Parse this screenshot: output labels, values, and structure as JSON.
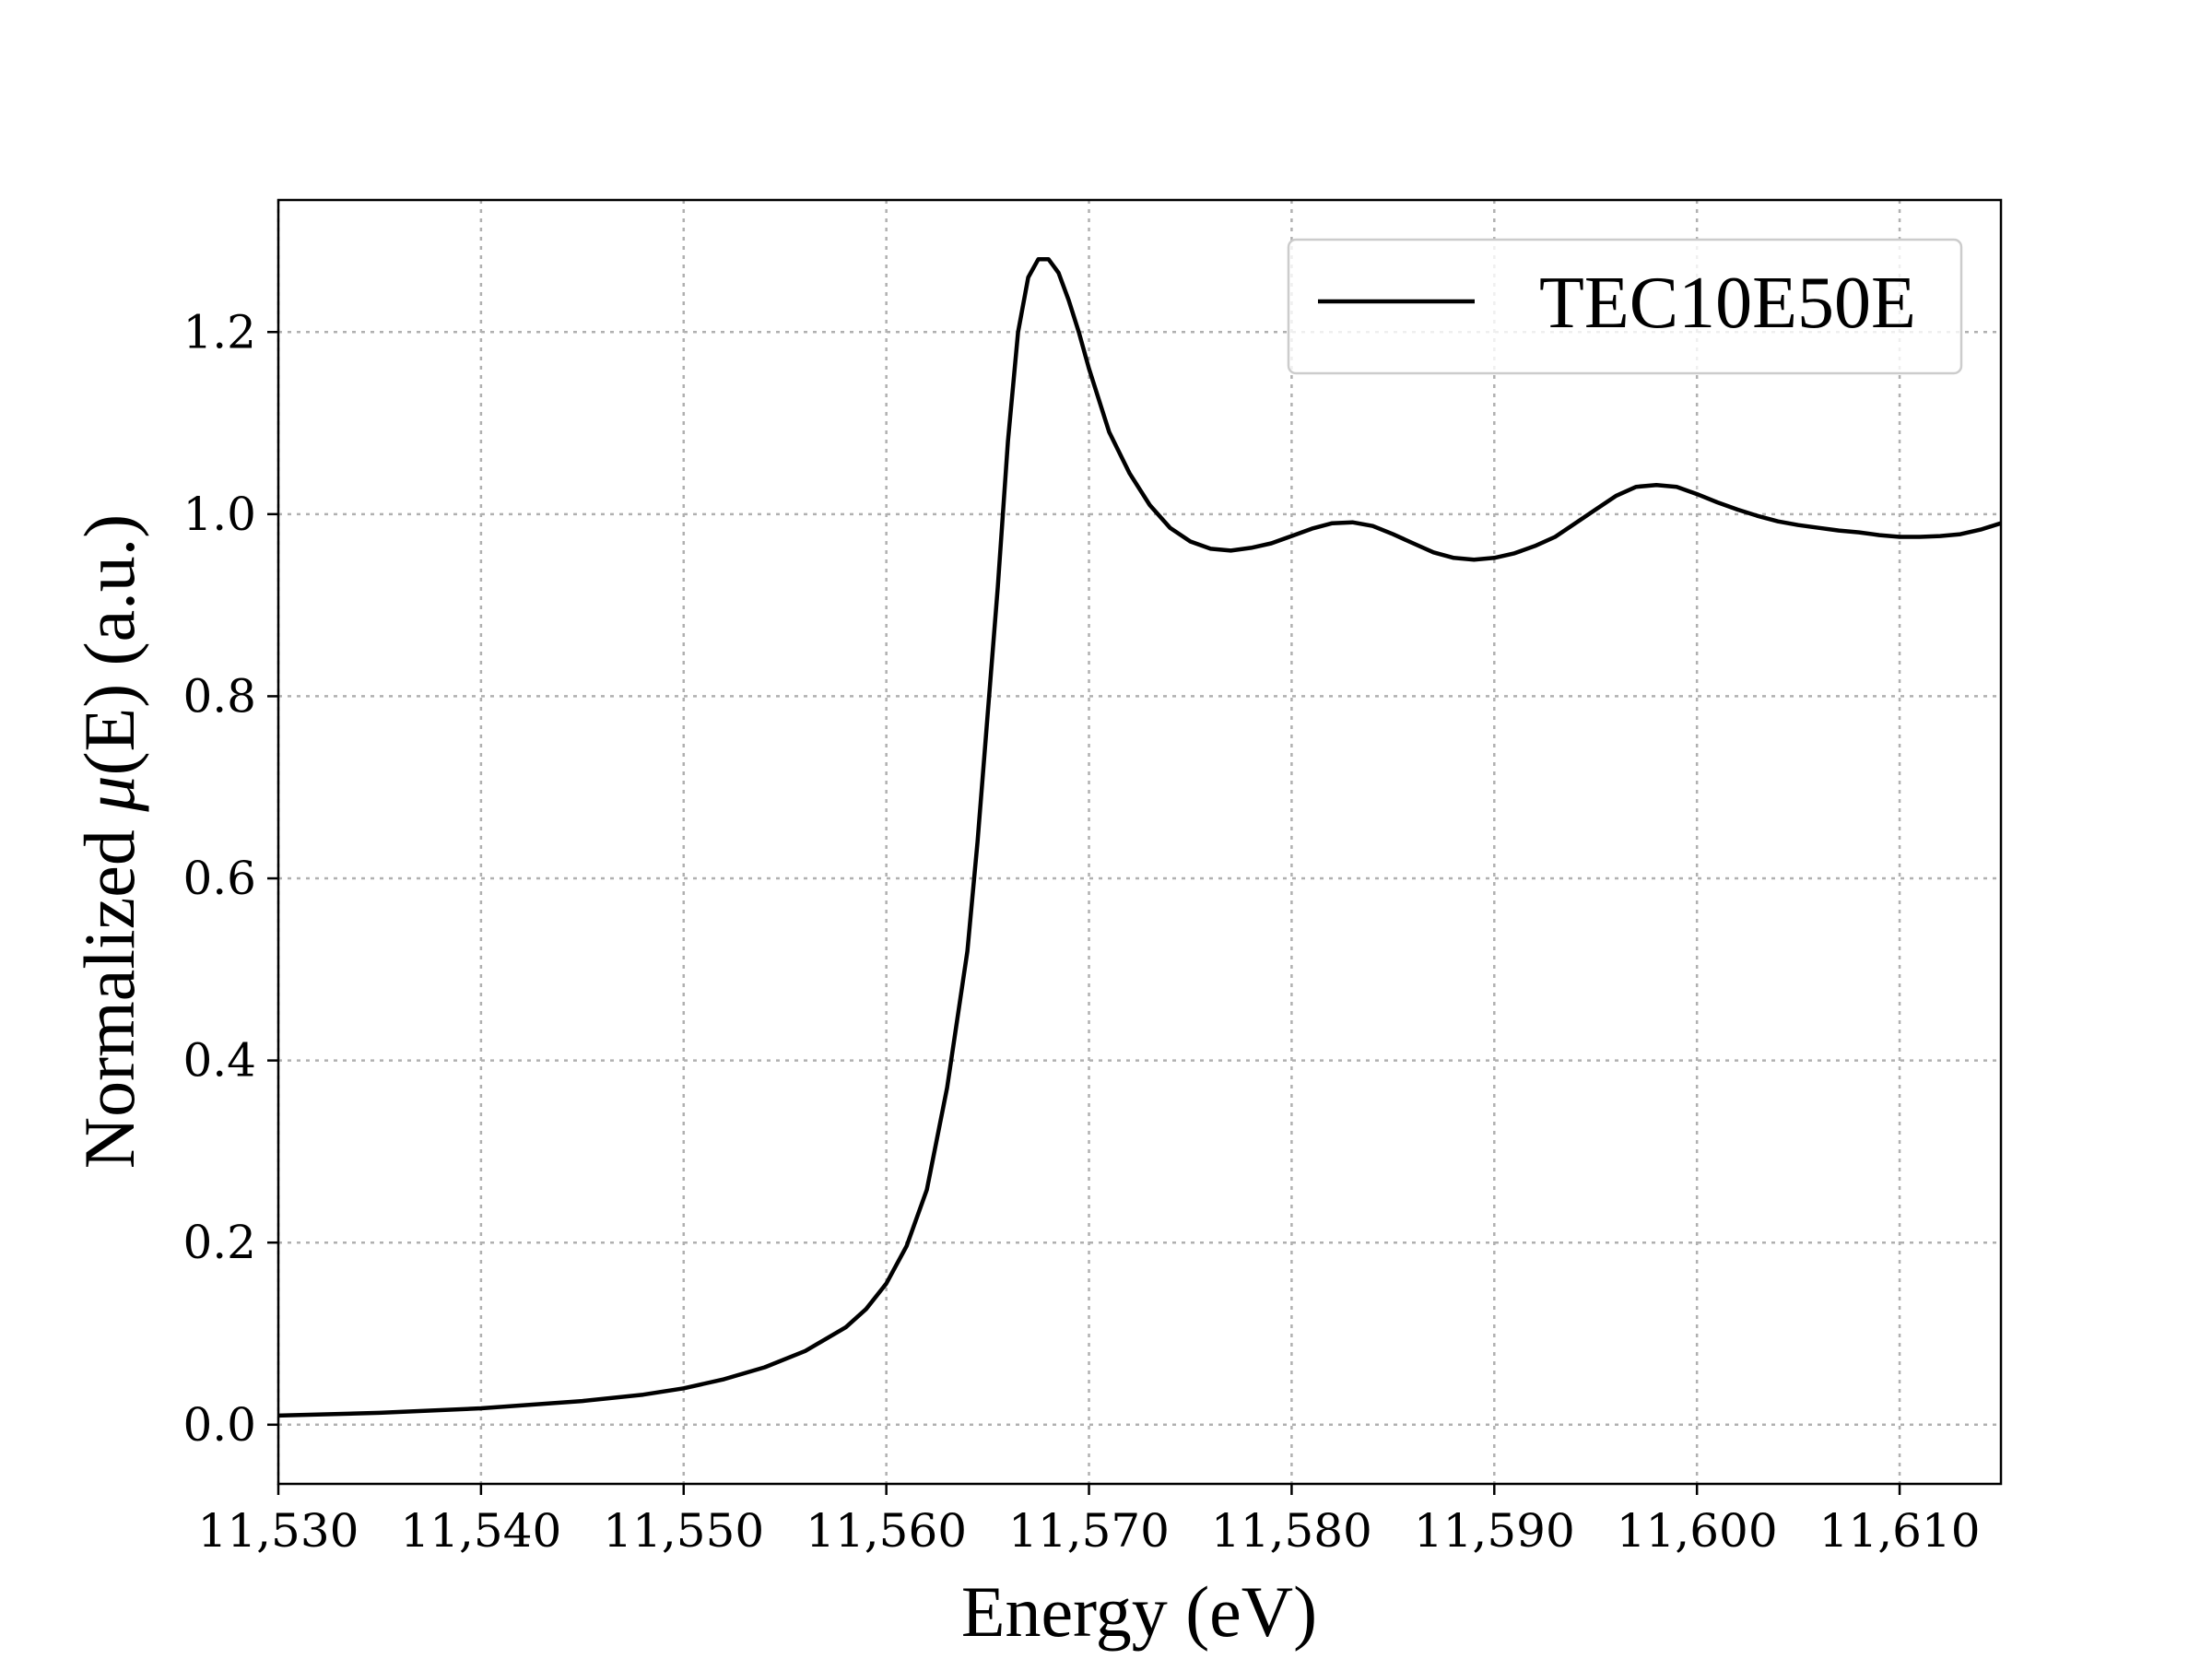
{
  "chart_data": {
    "type": "line",
    "xlabel": "Energy (eV)",
    "ylabel_prefix": "Normalized ",
    "ylabel_mu": "μ",
    "ylabel_arg": "(E)",
    "ylabel_suffix": " (a.u.)",
    "xlim": [
      11530,
      11615
    ],
    "ylim": [
      -0.065,
      1.345
    ],
    "x_ticks": [
      11530,
      11540,
      11550,
      11560,
      11570,
      11580,
      11590,
      11600,
      11610
    ],
    "x_tick_labels": [
      "11,530",
      "11,540",
      "11,550",
      "11,560",
      "11,570",
      "11,580",
      "11,590",
      "11,600",
      "11,610"
    ],
    "y_ticks": [
      0.0,
      0.2,
      0.4,
      0.6,
      0.8,
      1.0,
      1.2
    ],
    "y_tick_labels": [
      "0.0",
      "0.2",
      "0.4",
      "0.6",
      "0.8",
      "1.0",
      "1.2"
    ],
    "grid": true,
    "legend_position": "top-right",
    "colors": {
      "line": "#000000",
      "grid": "#b0b0b0"
    },
    "series": [
      {
        "name": "TEC10E50E",
        "x": [
          11530,
          11535,
          11540,
          11545,
          11548,
          11550,
          11552,
          11554,
          11556,
          11558,
          11559,
          11560,
          11561,
          11562,
          11563,
          11564,
          11564.5,
          11565,
          11565.5,
          11566,
          11566.5,
          11567,
          11567.5,
          11568,
          11568.5,
          11569,
          11569.5,
          11570,
          11571,
          11572,
          11573,
          11574,
          11575,
          11576,
          11577,
          11578,
          11579,
          11580,
          11581,
          11582,
          11583,
          11584,
          11585,
          11586,
          11587,
          11588,
          11589,
          11590,
          11591,
          11592,
          11593,
          11594,
          11595,
          11596,
          11597,
          11598,
          11599,
          11600,
          11601,
          11602,
          11603,
          11604,
          11605,
          11606,
          11607,
          11608,
          11609,
          11610,
          11611,
          11612,
          11613,
          11614,
          11615
        ],
        "y": [
          0.01,
          0.013,
          0.018,
          0.026,
          0.033,
          0.04,
          0.05,
          0.063,
          0.081,
          0.107,
          0.127,
          0.155,
          0.196,
          0.258,
          0.37,
          0.52,
          0.64,
          0.78,
          0.92,
          1.08,
          1.2,
          1.26,
          1.28,
          1.28,
          1.265,
          1.235,
          1.2,
          1.16,
          1.09,
          1.045,
          1.01,
          0.985,
          0.97,
          0.962,
          0.96,
          0.963,
          0.968,
          0.976,
          0.984,
          0.99,
          0.991,
          0.987,
          0.978,
          0.968,
          0.958,
          0.952,
          0.95,
          0.952,
          0.957,
          0.965,
          0.975,
          0.99,
          1.005,
          1.02,
          1.03,
          1.032,
          1.03,
          1.022,
          1.013,
          1.005,
          0.998,
          0.992,
          0.988,
          0.985,
          0.982,
          0.98,
          0.977,
          0.975,
          0.975,
          0.976,
          0.978,
          0.983,
          0.99
        ]
      }
    ]
  }
}
